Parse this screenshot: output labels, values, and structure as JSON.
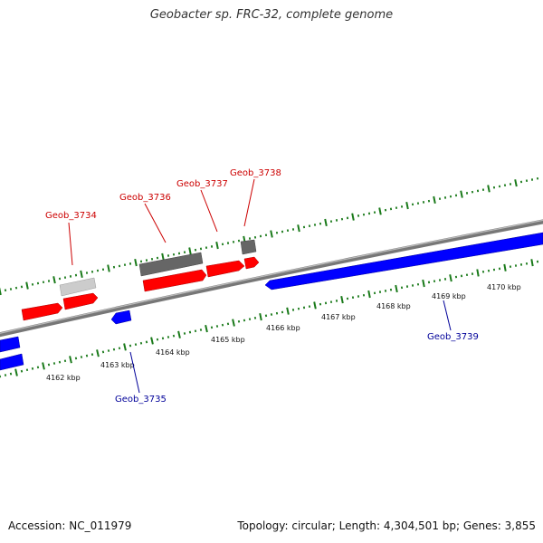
{
  "title": "Geobacter sp. FRC-32, complete genome",
  "footer": {
    "accession": "Accession: NC_011979",
    "summary": "Topology: circular; Length: 4,304,501 bp; Genes: 3,855"
  },
  "colors": {
    "forward_gene": "#ff0000",
    "reverse_gene": "#0000ff",
    "pseudo_gene": "#666666",
    "light_gene": "#cccccc",
    "backbone": "#888888",
    "tick": "#1a7a1a",
    "forward_label": "#cc0000",
    "reverse_label": "#000099"
  },
  "axis": {
    "ticks": [
      {
        "kbp": 4162,
        "label": "4162 kbp"
      },
      {
        "kbp": 4163,
        "label": "4163 kbp"
      },
      {
        "kbp": 4164,
        "label": "4164 kbp"
      },
      {
        "kbp": 4165,
        "label": "4165 kbp"
      },
      {
        "kbp": 4166,
        "label": "4166 kbp"
      },
      {
        "kbp": 4167,
        "label": "4167 kbp"
      },
      {
        "kbp": 4168,
        "label": "4168 kbp"
      },
      {
        "kbp": 4169,
        "label": "4169 kbp"
      },
      {
        "kbp": 4170,
        "label": "4170 kbp"
      }
    ]
  },
  "gene_labels": [
    {
      "name": "Geob_3734",
      "strand": "forward"
    },
    {
      "name": "Geob_3736",
      "strand": "forward"
    },
    {
      "name": "Geob_3737",
      "strand": "forward"
    },
    {
      "name": "Geob_3738",
      "strand": "forward"
    },
    {
      "name": "Geob_3735",
      "strand": "reverse"
    },
    {
      "name": "Geob_3739",
      "strand": "reverse"
    }
  ]
}
